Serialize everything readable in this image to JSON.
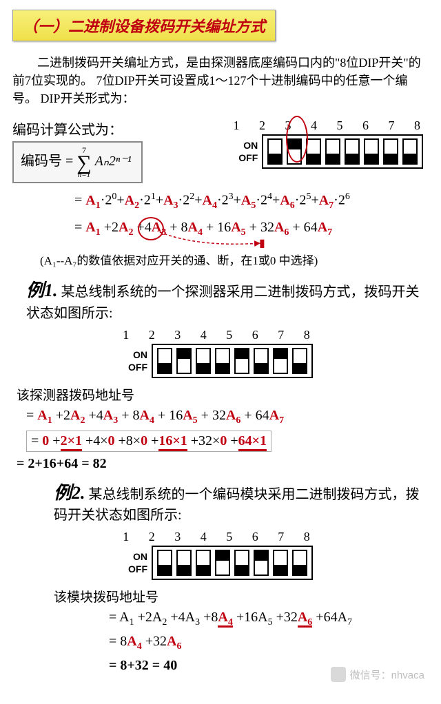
{
  "title": "（一）二进制设备拨码开关编址方式",
  "intro": "二进制拨码开关编址方式，是由探测器底座编码口内的\"8位DIP开关\"的前7位实现的。 7位DIP开关可设置成1～127个十进制编码中的任意一个编号。 DIP开关形式为：",
  "formula_label": "编码计算公式为：",
  "formula_lhs": "编码号 = ",
  "formula_sigma_top": "7",
  "formula_sigma_bottom": "n=1",
  "formula_rhs": "Aₙ2ⁿ⁻¹",
  "dip_numbers": "1 2 3 4 5 6 7 8",
  "dip_on": "ON",
  "dip_off": "OFF",
  "dip_intro_states": [
    "off",
    "on",
    "off",
    "off",
    "off",
    "off",
    "off",
    "off"
  ],
  "expand1_A": [
    "A",
    "A",
    "A",
    "A",
    "A",
    "A",
    "A"
  ],
  "note": "(A₁--A₇的数值依据对应开关的通、断，在1或0 中选择)",
  "ex1_head_big": "例1.",
  "ex1_head_rest": " 某总线制系统的一个探测器采用二进制拨码方式，拨码开关状态如图所示:",
  "dip_ex1_states": [
    "off",
    "on",
    "off",
    "off",
    "on",
    "off",
    "on",
    "off"
  ],
  "ex1_label": "该探测器拨码地址号",
  "ex1_calc_vals": [
    "0",
    "1",
    "0",
    "0",
    "1",
    "0",
    "1"
  ],
  "ex1_sum": "= 2+16+64 =  82",
  "ex2_head_big": "例2.",
  "ex2_head_rest": " 某总线制系统的一个编码模块采用二进制拨码方式，拨码开关状态如图所示:",
  "dip_ex2_states": [
    "off",
    "off",
    "off",
    "on",
    "off",
    "on",
    "off",
    "off"
  ],
  "ex2_label": "该模块拨码地址号",
  "ex2_line2": "= 8A₄ +32A₆",
  "ex2_line3": "= 8+32  =  40",
  "watermark_text": "微信号：nhvaca",
  "colors": {
    "red": "#c00010",
    "title_bg_top": "#f7f07a",
    "title_bg_bottom": "#efe04a"
  }
}
